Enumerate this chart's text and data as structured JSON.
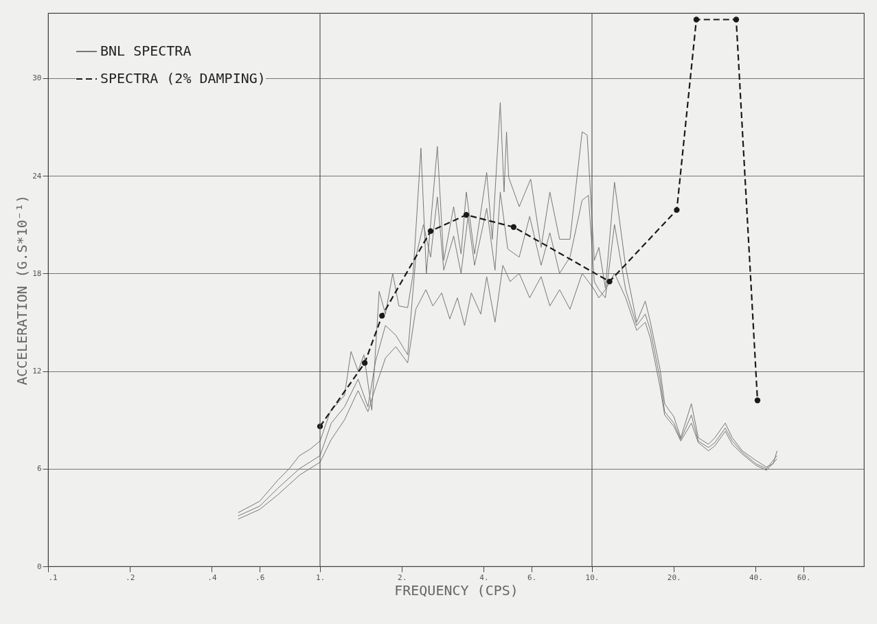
{
  "chart_data": {
    "type": "line",
    "xlabel": "FREQUENCY (CPS)",
    "ylabel": "ACCELERATION (G.S*10⁻¹)",
    "log": "x",
    "grid": "y",
    "legend": "top left",
    "xlim": [
      0.1,
      100
    ],
    "ylim": [
      0,
      34
    ],
    "xticks": [
      {
        "value": 0.1,
        "label": ".1"
      },
      {
        "value": 0.2,
        "label": ".2"
      },
      {
        "value": 0.4,
        "label": ".4"
      },
      {
        "value": 0.6,
        "label": ".6"
      },
      {
        "value": 1,
        "label": "1."
      },
      {
        "value": 2,
        "label": "2."
      },
      {
        "value": 4,
        "label": "4."
      },
      {
        "value": 6,
        "label": "6."
      },
      {
        "value": 10,
        "label": "10."
      },
      {
        "value": 20,
        "label": "20."
      },
      {
        "value": 40,
        "label": "40."
      },
      {
        "value": 60,
        "label": "60."
      }
    ],
    "yticks": [
      0,
      6,
      12,
      18,
      24,
      30
    ],
    "ref_lines": [
      {
        "axis": "x",
        "value": 1
      },
      {
        "axis": "x",
        "value": 10
      }
    ],
    "series": [
      {
        "name": "BNL SPECTRA",
        "color": "#777777",
        "line_style": "solid",
        "marker": "none",
        "x": [
          0.5,
          0.6,
          0.7,
          0.77,
          0.84,
          0.92,
          1.0,
          1.09,
          1.23,
          1.3,
          1.38,
          1.45,
          1.55,
          1.65,
          1.74,
          1.85,
          1.95,
          2.1,
          2.2,
          2.35,
          2.46,
          2.7,
          2.85,
          3.1,
          3.3,
          3.45,
          3.7,
          4.1,
          4.3,
          4.6,
          4.75,
          4.85,
          4.94,
          5.4,
          5.95,
          6.5,
          7.0,
          7.6,
          8.3,
          9.2,
          9.6,
          10.2,
          10.6,
          11.2,
          12.1,
          13.3,
          14.6,
          15.7,
          16.4,
          17.8,
          18.5,
          19.2,
          20,
          21.2,
          23.2,
          24.6,
          26.8,
          28.3,
          30.9,
          32.8,
          35.7,
          40.1,
          43.8,
          46.4,
          47.9
        ],
        "values": [
          3.3,
          4.0,
          5.3,
          6.0,
          6.8,
          7.2,
          7.7,
          9.5,
          10.5,
          13.2,
          12.0,
          13.0,
          9.6,
          16.9,
          15.5,
          18.0,
          16.0,
          15.9,
          18.0,
          25.7,
          18.0,
          25.8,
          18.8,
          22.1,
          19.2,
          23.0,
          19.2,
          24.2,
          20.1,
          28.5,
          23.0,
          26.7,
          23.9,
          22.1,
          23.8,
          19.6,
          23.0,
          20.1,
          20.1,
          26.7,
          26.5,
          18.8,
          19.6,
          17.1,
          23.6,
          18.4,
          15.0,
          16.3,
          15.0,
          12.1,
          10.0,
          9.6,
          9.2,
          7.9,
          10.0,
          7.9,
          7.5,
          7.9,
          8.8,
          7.9,
          7.1,
          6.5,
          6.1,
          6.3,
          7.1
        ]
      },
      {
        "color": "#777777",
        "line_style": "solid",
        "marker": "none",
        "x": [
          0.5,
          0.6,
          0.7,
          0.84,
          1.0,
          1.1,
          1.23,
          1.38,
          1.5,
          1.6,
          1.74,
          1.9,
          2.1,
          2.25,
          2.4,
          2.55,
          2.7,
          2.85,
          3.1,
          3.3,
          3.5,
          3.7,
          4.1,
          4.4,
          4.6,
          4.9,
          5.4,
          5.9,
          6.5,
          7.0,
          7.6,
          8.3,
          9.2,
          9.7,
          10.2,
          10.6,
          11.2,
          12.1,
          13.3,
          14.6,
          15.7,
          16.4,
          17.8,
          18.5,
          20,
          21.2,
          23.2,
          24.6,
          26.8,
          28.3,
          30.9,
          32.8,
          35.7,
          40.1,
          43.8,
          47.9
        ],
        "values": [
          3.1,
          3.7,
          4.8,
          6.0,
          6.8,
          8.8,
          9.8,
          11.5,
          9.8,
          12.6,
          14.8,
          14.2,
          13.0,
          19.0,
          21.0,
          19.0,
          22.7,
          18.2,
          20.3,
          18.0,
          21.5,
          18.5,
          22.0,
          18.2,
          23.0,
          19.5,
          19.0,
          21.5,
          18.5,
          20.5,
          18.0,
          19.0,
          22.5,
          22.8,
          17.5,
          17.0,
          16.5,
          21.0,
          17.0,
          14.8,
          15.5,
          14.5,
          11.5,
          9.5,
          8.8,
          7.8,
          9.3,
          7.7,
          7.3,
          7.6,
          8.5,
          7.7,
          7.0,
          6.3,
          6.0,
          6.8
        ]
      },
      {
        "color": "#777777",
        "line_style": "solid",
        "marker": "none",
        "x": [
          0.5,
          0.6,
          0.7,
          0.84,
          1.0,
          1.1,
          1.23,
          1.38,
          1.5,
          1.6,
          1.74,
          1.9,
          2.1,
          2.25,
          2.45,
          2.6,
          2.8,
          3.0,
          3.2,
          3.4,
          3.6,
          3.9,
          4.1,
          4.4,
          4.7,
          5.0,
          5.4,
          5.9,
          6.5,
          7.0,
          7.6,
          8.3,
          9.2,
          9.7,
          10.2,
          10.6,
          11.2,
          12.1,
          13.3,
          14.6,
          15.7,
          16.4,
          17.8,
          18.5,
          20,
          21.2,
          23.2,
          24.6,
          26.8,
          28.3,
          30.9,
          32.8,
          35.7,
          40.1,
          43.8,
          47.9
        ],
        "values": [
          2.9,
          3.5,
          4.4,
          5.6,
          6.4,
          7.8,
          9.0,
          10.8,
          9.5,
          11.0,
          12.8,
          13.5,
          12.5,
          15.8,
          17.0,
          16.0,
          16.8,
          15.2,
          16.5,
          14.8,
          16.8,
          15.5,
          17.8,
          15.0,
          18.5,
          17.5,
          18.0,
          16.5,
          17.8,
          16.0,
          17.0,
          15.8,
          18.0,
          17.5,
          17.0,
          16.5,
          17.0,
          18.0,
          16.5,
          14.5,
          15.0,
          14.0,
          11.0,
          9.3,
          8.6,
          7.7,
          8.8,
          7.6,
          7.1,
          7.4,
          8.3,
          7.5,
          6.9,
          6.2,
          5.9,
          6.6
        ]
      },
      {
        "name": "SPECTRA (2% DAMPING)",
        "color": "#1a1a1a",
        "line_style": "dashed",
        "marker": "circle",
        "x": [
          1.0,
          1.46,
          1.69,
          2.55,
          3.45,
          5.15,
          11.6,
          20.5,
          24.2,
          33.9,
          40.6
        ],
        "values": [
          8.6,
          12.5,
          15.4,
          20.6,
          21.6,
          20.85,
          17.5,
          21.9,
          33.6,
          33.6,
          10.2
        ]
      }
    ]
  }
}
